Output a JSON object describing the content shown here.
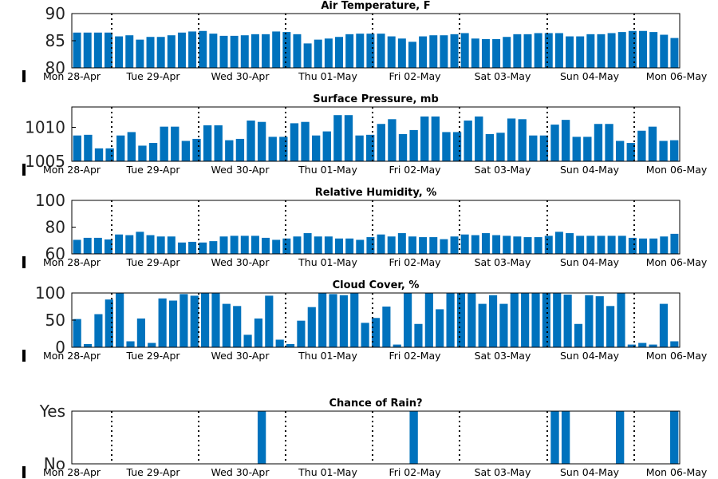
{
  "chart_data": [
    {
      "type": "bar",
      "title": "Air Temperature, F",
      "ylim": [
        80,
        90
      ],
      "yticks": [
        "80",
        "85",
        "90"
      ],
      "values": [
        86.5,
        86.5,
        86.5,
        86.5,
        85.8,
        86.0,
        85.2,
        85.7,
        85.7,
        86.0,
        86.5,
        86.7,
        86.8,
        86.3,
        85.9,
        85.9,
        86.0,
        86.2,
        86.2,
        86.7,
        86.6,
        86.2,
        84.5,
        85.2,
        85.4,
        85.7,
        86.2,
        86.3,
        86.3,
        86.3,
        85.8,
        85.4,
        84.8,
        85.8,
        86.0,
        86.0,
        86.2,
        86.4,
        85.4,
        85.3,
        85.3,
        85.7,
        86.2,
        86.2,
        86.4,
        86.4,
        86.4,
        85.8,
        85.8,
        86.2,
        86.2,
        86.4,
        86.6,
        86.8,
        86.8,
        86.6,
        86.1,
        85.5
      ]
    },
    {
      "type": "bar",
      "title": "Surface Pressure, mb",
      "ylim": [
        1005,
        1013
      ],
      "yticks": [
        "1005",
        "1010"
      ],
      "values": [
        1008.8,
        1008.9,
        1006.9,
        1006.9,
        1008.8,
        1009.3,
        1007.3,
        1007.7,
        1010.1,
        1010.1,
        1008.0,
        1008.3,
        1010.3,
        1010.3,
        1008.1,
        1008.3,
        1011.0,
        1010.8,
        1008.6,
        1008.6,
        1010.6,
        1010.8,
        1008.8,
        1009.4,
        1011.8,
        1011.8,
        1008.8,
        1008.9,
        1010.5,
        1011.2,
        1009.0,
        1009.6,
        1011.6,
        1011.6,
        1009.3,
        1009.3,
        1011.0,
        1011.6,
        1009.0,
        1009.2,
        1011.3,
        1011.2,
        1008.8,
        1008.8,
        1010.4,
        1011.1,
        1008.6,
        1008.6,
        1010.5,
        1010.5,
        1008.0,
        1007.7,
        1009.5,
        1010.1,
        1008.0,
        1008.1
      ]
    },
    {
      "type": "bar",
      "title": "Relative Humidity, %",
      "ylim": [
        60,
        100
      ],
      "yticks": [
        "60",
        "80",
        "100"
      ],
      "values": [
        70.5,
        72.0,
        72.0,
        70.8,
        74.5,
        74.0,
        76.5,
        74.0,
        73.0,
        73.0,
        68.5,
        69.0,
        68.5,
        69.5,
        73.0,
        73.5,
        73.5,
        73.5,
        72.0,
        70.5,
        71.5,
        73.0,
        75.5,
        73.0,
        73.0,
        71.5,
        71.5,
        70.5,
        72.5,
        74.5,
        73.0,
        75.5,
        73.0,
        72.5,
        72.5,
        71.0,
        73.0,
        74.5,
        74.0,
        75.5,
        74.0,
        73.5,
        73.0,
        72.5,
        72.5,
        73.5,
        76.5,
        75.5,
        73.5,
        73.5,
        73.5,
        73.5,
        73.5,
        72.0,
        71.5,
        71.5,
        73.0,
        75.0
      ]
    },
    {
      "type": "bar",
      "title": "Cloud Cover, %",
      "ylim": [
        0,
        100
      ],
      "yticks": [
        "0",
        "50",
        "100"
      ],
      "values": [
        52,
        6,
        61,
        88,
        100,
        11,
        53,
        8,
        90,
        86,
        98,
        95,
        100,
        100,
        80,
        76,
        23,
        53,
        95,
        14,
        6,
        49,
        74,
        100,
        98,
        96,
        100,
        45,
        54,
        75,
        5,
        100,
        43,
        100,
        70,
        100,
        100,
        100,
        80,
        96,
        80,
        100,
        100,
        100,
        100,
        100,
        97,
        43,
        96,
        94,
        76,
        100,
        5,
        8,
        5,
        80,
        11
      ]
    },
    {
      "type": "bar",
      "title": "Chance of Rain?",
      "ylim": [
        0,
        1
      ],
      "yticks": [
        "No",
        "Yes"
      ],
      "values": [
        0,
        0,
        0,
        0,
        0,
        0,
        0,
        0,
        0,
        0,
        0,
        0,
        0,
        0,
        0,
        0,
        0,
        1,
        0,
        0,
        0,
        0,
        0,
        0,
        0,
        0,
        0,
        0,
        0,
        0,
        0,
        1,
        0,
        0,
        0,
        0,
        0,
        0,
        0,
        0,
        0,
        0,
        0,
        0,
        1,
        1,
        0,
        0,
        0,
        0,
        1,
        0,
        0,
        0,
        0,
        1
      ]
    }
  ],
  "x_labels": [
    "Mon 28-Apr",
    "Tue 29-Apr",
    "Wed 30-Apr",
    "Thu 01-May",
    "Fri 02-May",
    "Sat 03-May",
    "Sun 04-May",
    "Mon 06-May"
  ],
  "colors": {
    "bar": "#0072bd",
    "axis": "#000000",
    "background": "#ffffff"
  }
}
